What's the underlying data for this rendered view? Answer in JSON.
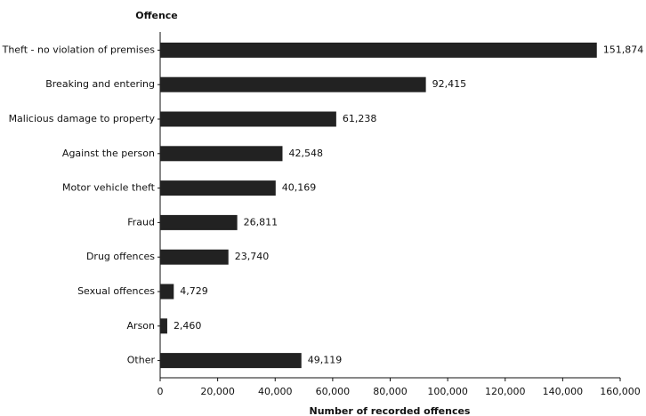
{
  "chart_data": {
    "type": "bar",
    "orientation": "horizontal",
    "y_label": "Offence",
    "x_label": "Number of recorded offences",
    "categories": [
      "Theft - no violation of premises",
      "Breaking and entering",
      "Malicious damage to property",
      "Against the person",
      "Motor vehicle theft",
      "Fraud",
      "Drug offences",
      "Sexual offences",
      "Arson",
      "Other"
    ],
    "values": [
      151874,
      92415,
      61238,
      42548,
      40169,
      26811,
      23740,
      4729,
      2460,
      49119
    ],
    "value_labels": [
      "151,874",
      "92,415",
      "61,238",
      "42,548",
      "40,169",
      "26,811",
      "23,740",
      "4,729",
      "2,460",
      "49,119"
    ],
    "color": "#222222",
    "xlim": [
      0,
      160000
    ],
    "xticks": [
      0,
      {
        "value": 20000,
        "label": "20,000"
      },
      {
        "value": 40000,
        "label": "40,000"
      },
      {
        "value": 60000,
        "label": "60,000"
      },
      {
        "value": 80000,
        "label": "80,000"
      },
      {
        "value": 100000,
        "label": "100,000"
      },
      {
        "value": 120000,
        "label": "120,000"
      },
      {
        "value": 140000,
        "label": "140,000"
      },
      {
        "value": 160000,
        "label": "160,000"
      }
    ]
  }
}
